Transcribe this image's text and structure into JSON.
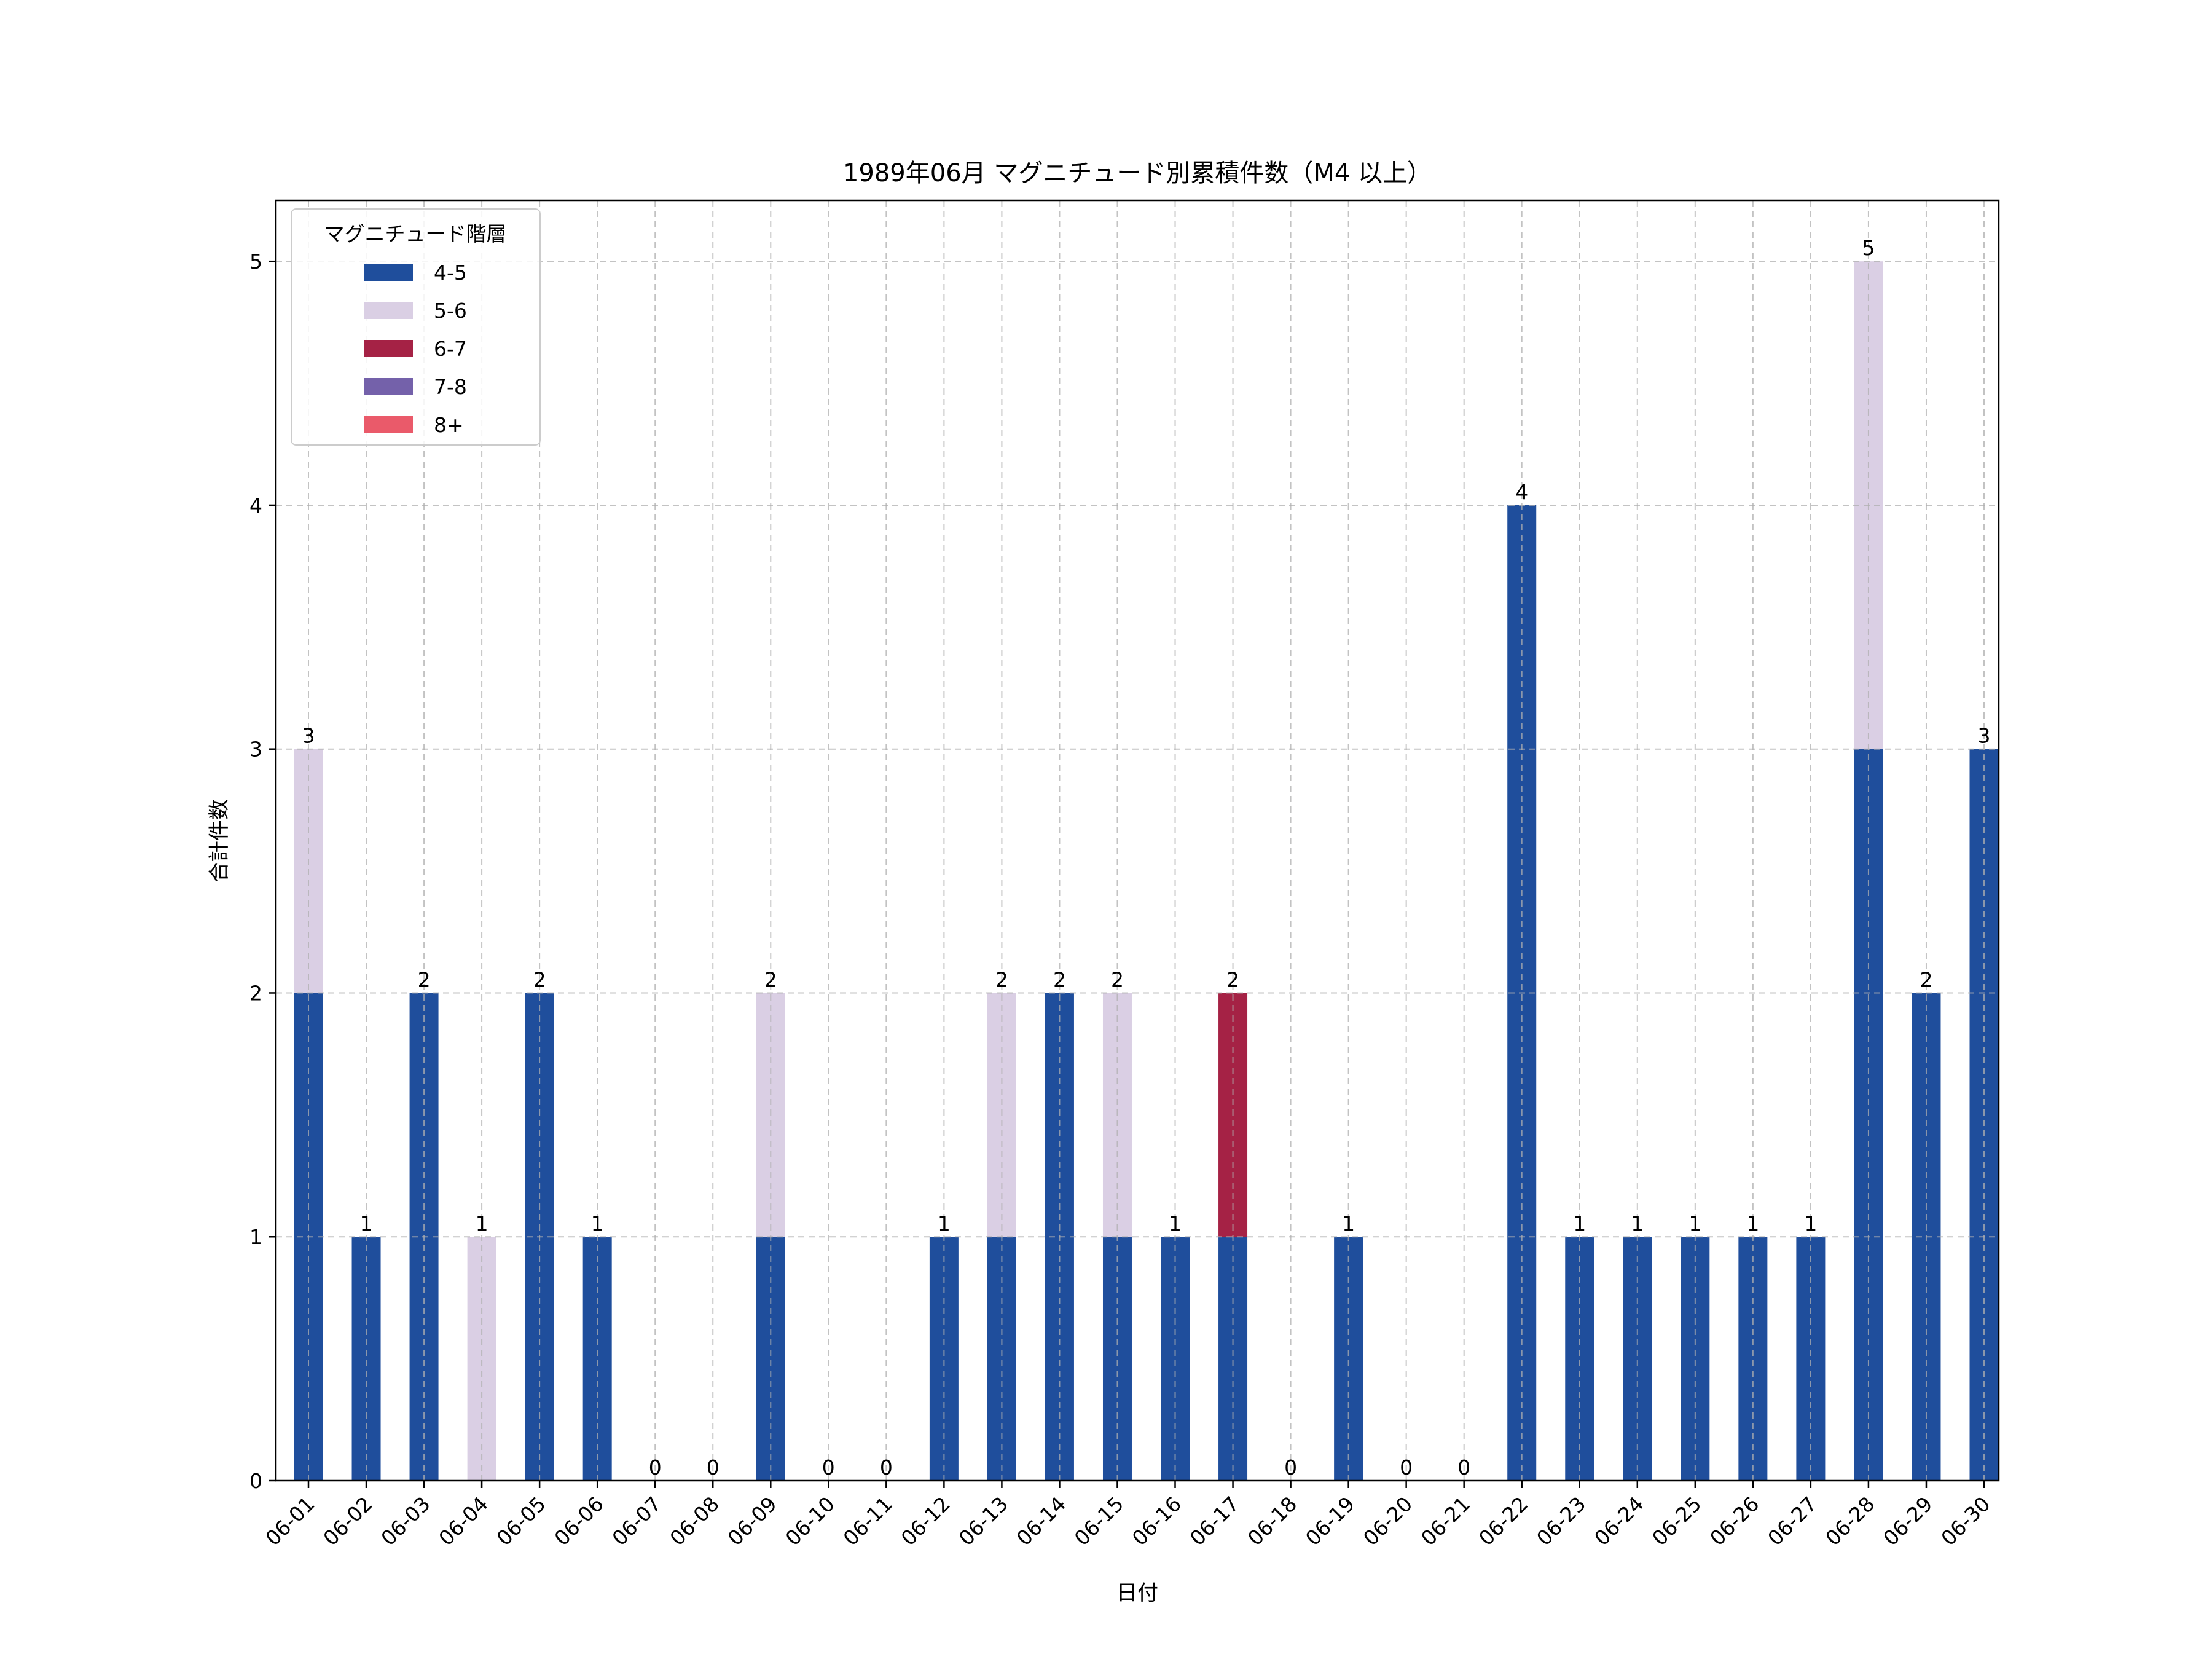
{
  "chart_data": {
    "type": "bar",
    "stacked": true,
    "title": "1989年06月 マグニチュード別累積件数（M4 以上）",
    "xlabel": "日付",
    "ylabel": "合計件数",
    "ylim": [
      0,
      5.25
    ],
    "yticks": [
      0,
      1,
      2,
      3,
      4,
      5
    ],
    "grid": true,
    "legend": {
      "title": "マグニチュード階層",
      "placement": "top-left"
    },
    "categories": [
      "06-01",
      "06-02",
      "06-03",
      "06-04",
      "06-05",
      "06-06",
      "06-07",
      "06-08",
      "06-09",
      "06-10",
      "06-11",
      "06-12",
      "06-13",
      "06-14",
      "06-15",
      "06-16",
      "06-17",
      "06-18",
      "06-19",
      "06-20",
      "06-21",
      "06-22",
      "06-23",
      "06-24",
      "06-25",
      "06-26",
      "06-27",
      "06-28",
      "06-29",
      "06-30"
    ],
    "series": [
      {
        "name": "4-5",
        "color": "#1f4e9c",
        "values": [
          2,
          1,
          2,
          0,
          2,
          1,
          0,
          0,
          1,
          0,
          0,
          1,
          1,
          2,
          1,
          1,
          1,
          0,
          1,
          0,
          0,
          4,
          1,
          1,
          1,
          1,
          1,
          3,
          2,
          3
        ]
      },
      {
        "name": "5-6",
        "color": "#dacfe4",
        "values": [
          1,
          0,
          0,
          1,
          0,
          0,
          0,
          0,
          1,
          0,
          0,
          0,
          1,
          0,
          1,
          0,
          0,
          0,
          0,
          0,
          0,
          0,
          0,
          0,
          0,
          0,
          0,
          2,
          0,
          0
        ]
      },
      {
        "name": "6-7",
        "color": "#a52245",
        "values": [
          0,
          0,
          0,
          0,
          0,
          0,
          0,
          0,
          0,
          0,
          0,
          0,
          0,
          0,
          0,
          0,
          1,
          0,
          0,
          0,
          0,
          0,
          0,
          0,
          0,
          0,
          0,
          0,
          0,
          0
        ]
      },
      {
        "name": "7-8",
        "color": "#7461aa",
        "values": [
          0,
          0,
          0,
          0,
          0,
          0,
          0,
          0,
          0,
          0,
          0,
          0,
          0,
          0,
          0,
          0,
          0,
          0,
          0,
          0,
          0,
          0,
          0,
          0,
          0,
          0,
          0,
          0,
          0,
          0
        ]
      },
      {
        "name": "8+",
        "color": "#ea5a6a",
        "values": [
          0,
          0,
          0,
          0,
          0,
          0,
          0,
          0,
          0,
          0,
          0,
          0,
          0,
          0,
          0,
          0,
          0,
          0,
          0,
          0,
          0,
          0,
          0,
          0,
          0,
          0,
          0,
          0,
          0,
          0
        ]
      }
    ],
    "totals": [
      3,
      1,
      2,
      1,
      2,
      1,
      0,
      0,
      2,
      0,
      0,
      1,
      2,
      2,
      2,
      1,
      2,
      0,
      1,
      0,
      0,
      4,
      1,
      1,
      1,
      1,
      1,
      5,
      2,
      3
    ]
  }
}
